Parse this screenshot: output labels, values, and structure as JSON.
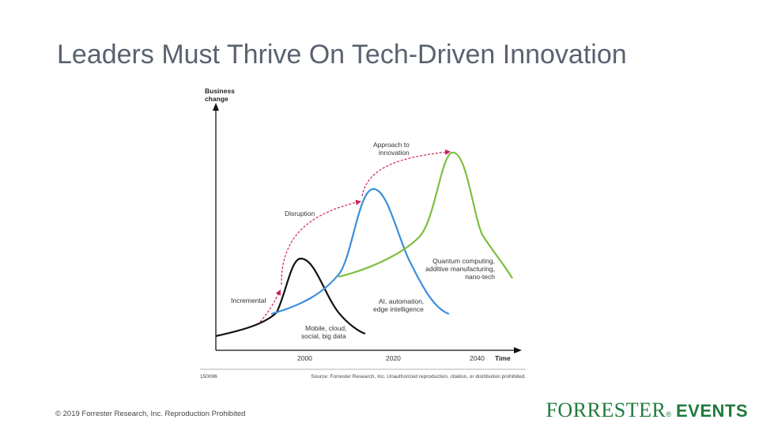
{
  "slide": {
    "title": "Leaders Must Thrive On Tech-Driven Innovation",
    "copyright": "© 2019 Forrester Research, Inc. Reproduction Prohibited"
  },
  "logo": {
    "wordmark": "FORRESTER",
    "registered": "®",
    "events": "EVENTS",
    "color": "#1f7a3c"
  },
  "diagram": {
    "y_axis_line1": "Business",
    "y_axis_line2": "change",
    "x_axis_label": "Time",
    "ticks": [
      "2000",
      "2020",
      "2040"
    ],
    "stage_labels": {
      "incremental": "Incremental",
      "disruption": "Disruption",
      "approach_line1": "Approach to",
      "approach_line2": "innovation"
    },
    "curve_labels": {
      "black_line1": "Mobile, cloud,",
      "black_line2": "social, big data",
      "blue_line1": "AI, automation,",
      "blue_line2": "edge intelligence",
      "green_line1": "Quantum computing,",
      "green_line2": "additive manufacturing,",
      "green_line3": "nano-tech"
    },
    "figure_id": "150096",
    "source": "Source: Forrester Research, Inc. Unauthorized reproduction, citation, or distribution prohibited.",
    "colors": {
      "black_curve": "#111111",
      "blue_curve": "#3b8fdc",
      "green_curve": "#7cbf3f",
      "arrow": "#cc1f5a"
    }
  }
}
